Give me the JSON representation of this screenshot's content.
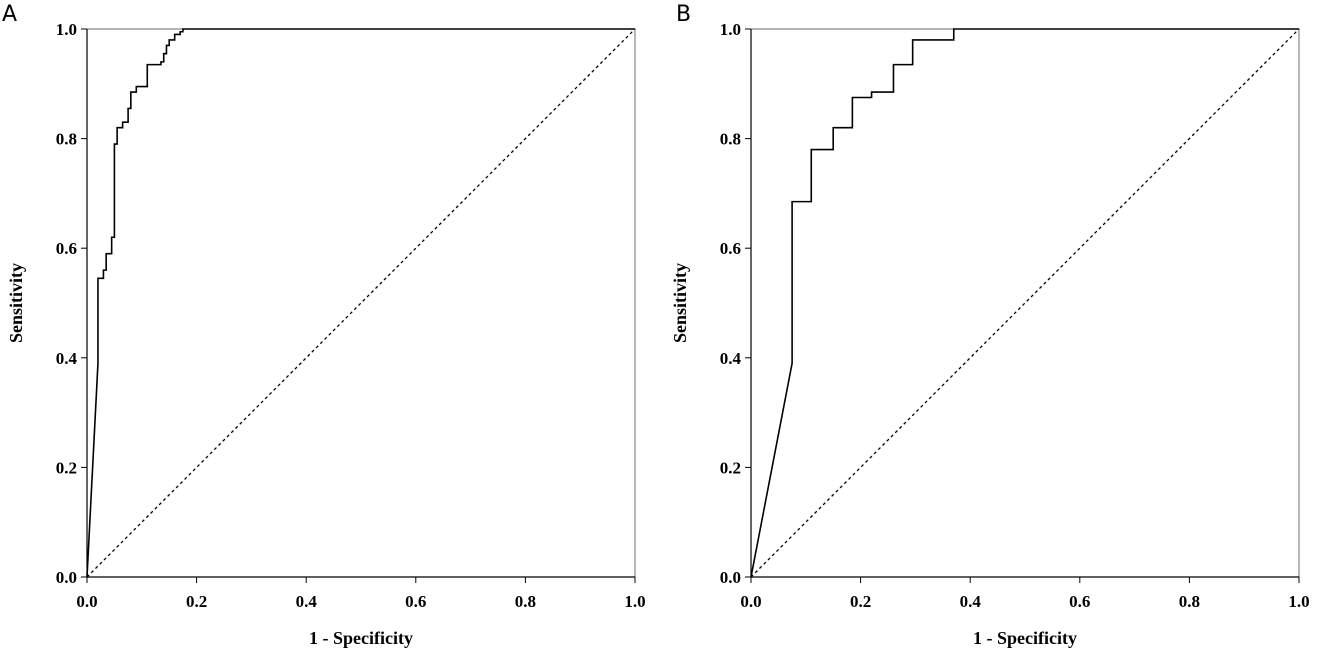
{
  "panels": {
    "a": {
      "label": "A"
    },
    "b": {
      "label": "B"
    }
  },
  "chart_data": [
    {
      "type": "line",
      "panel": "A",
      "title": "",
      "xlabel": "1 - Specificity",
      "ylabel": "Sensitivity",
      "xlim": [
        0,
        1
      ],
      "ylim": [
        0,
        1
      ],
      "xticks": [
        "0.0",
        "0.2",
        "0.4",
        "0.6",
        "0.8",
        "1.0"
      ],
      "yticks": [
        "0.0",
        "0.2",
        "0.4",
        "0.6",
        "0.8",
        "1.0"
      ],
      "grid": false,
      "series": [
        {
          "style": "solid",
          "color": "#000000",
          "x": [
            0,
            0.02,
            0.02,
            0.03,
            0.03,
            0.035,
            0.035,
            0.045,
            0.045,
            0.05,
            0.05,
            0.055,
            0.055,
            0.065,
            0.065,
            0.075,
            0.075,
            0.08,
            0.08,
            0.09,
            0.09,
            0.11,
            0.11,
            0.135,
            0.135,
            0.14,
            0.14,
            0.145,
            0.145,
            0.15,
            0.15,
            0.16,
            0.16,
            0.17,
            0.17,
            0.175,
            0.175,
            1.0
          ],
          "y": [
            0,
            0.39,
            0.545,
            0.545,
            0.56,
            0.56,
            0.59,
            0.59,
            0.62,
            0.62,
            0.79,
            0.79,
            0.82,
            0.82,
            0.83,
            0.83,
            0.855,
            0.855,
            0.885,
            0.885,
            0.895,
            0.895,
            0.935,
            0.935,
            0.94,
            0.94,
            0.955,
            0.955,
            0.97,
            0.97,
            0.98,
            0.98,
            0.99,
            0.99,
            0.995,
            0.995,
            1.0,
            1.0
          ]
        },
        {
          "style": "dotted",
          "color": "#000000",
          "x": [
            0,
            1
          ],
          "y": [
            0,
            1
          ]
        }
      ]
    },
    {
      "type": "line",
      "panel": "B",
      "title": "",
      "xlabel": "1 - Specificity",
      "ylabel": "Sensitivity",
      "xlim": [
        0,
        1
      ],
      "ylim": [
        0,
        1
      ],
      "xticks": [
        "0.0",
        "0.2",
        "0.4",
        "0.6",
        "0.8",
        "1.0"
      ],
      "yticks": [
        "0.0",
        "0.2",
        "0.4",
        "0.6",
        "0.8",
        "1.0"
      ],
      "grid": false,
      "series": [
        {
          "style": "solid",
          "color": "#000000",
          "x": [
            0,
            0.075,
            0.075,
            0.11,
            0.11,
            0.15,
            0.15,
            0.185,
            0.185,
            0.22,
            0.22,
            0.26,
            0.26,
            0.295,
            0.295,
            0.37,
            0.37,
            1.0
          ],
          "y": [
            0,
            0.39,
            0.685,
            0.685,
            0.78,
            0.78,
            0.82,
            0.82,
            0.875,
            0.875,
            0.885,
            0.885,
            0.935,
            0.935,
            0.98,
            0.98,
            1.0,
            1.0
          ]
        },
        {
          "style": "dotted",
          "color": "#000000",
          "x": [
            0,
            1
          ],
          "y": [
            0,
            1
          ]
        }
      ]
    }
  ]
}
